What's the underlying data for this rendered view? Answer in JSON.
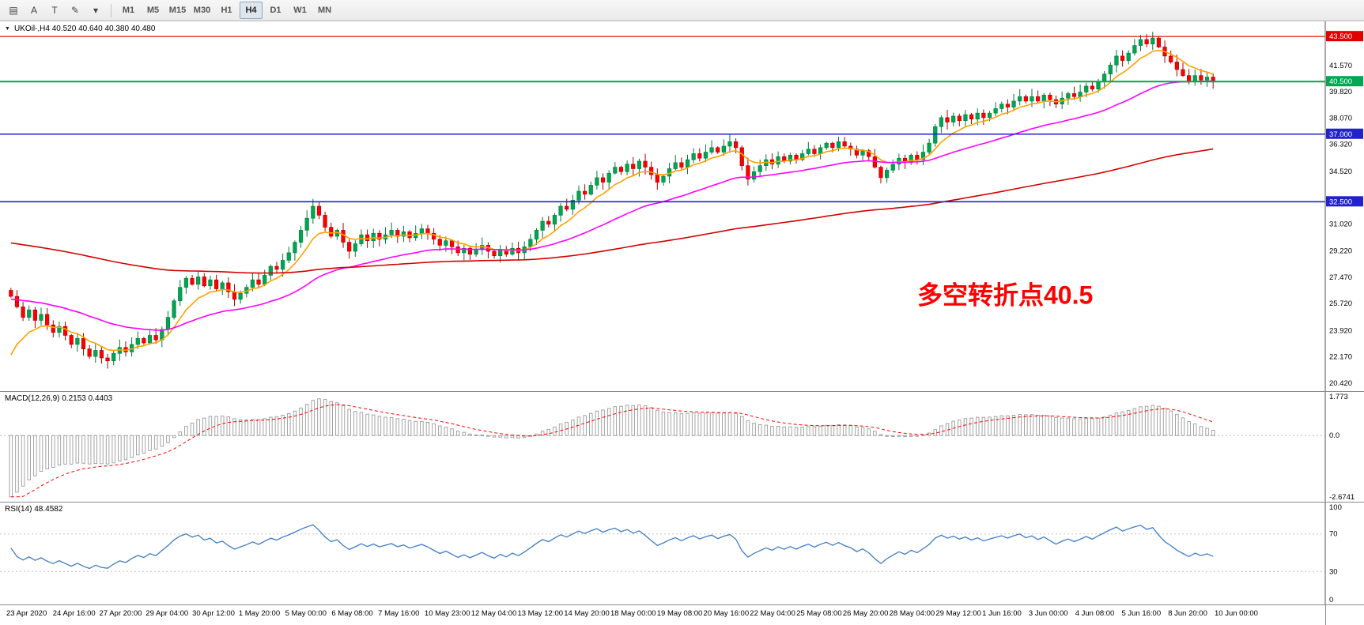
{
  "ui": {
    "toolbar": {
      "tools": [
        {
          "id": "charts-menu-icon",
          "glyph": "▤"
        },
        {
          "id": "arrow-tool-button",
          "glyph": "A"
        },
        {
          "id": "text-tool-button",
          "glyph": "T"
        },
        {
          "id": "draw-tool-icon",
          "glyph": "✎"
        },
        {
          "id": "more-tools-icon",
          "glyph": "▾"
        }
      ],
      "timeframes": [
        "M1",
        "M5",
        "M15",
        "M30",
        "H1",
        "H4",
        "D1",
        "W1",
        "MN"
      ],
      "active_timeframe": "H4"
    },
    "main": {
      "symbol_line": "UKOil-,H4  40.520 40.640 40.380 40.480",
      "annotation": "多空转折点40.5",
      "annotation_color": "#FF0000",
      "price_ticks": [
        "41.570",
        "39.820",
        "38.070",
        "36.320",
        "34.520",
        "31.020",
        "29.220",
        "27.470",
        "25.720",
        "23.920",
        "22.170",
        "20.420"
      ],
      "levels": [
        {
          "price": 43.5,
          "label": "43.500",
          "line_color": "#E00000",
          "badge_bg": "#E00000",
          "width": 1.2
        },
        {
          "price": 40.5,
          "label": "40.500",
          "line_color": "#00A651",
          "badge_bg": "#00A651",
          "width": 2
        },
        {
          "price": 37.0,
          "label": "37.000",
          "line_color": "#2222CC",
          "badge_bg": "#2222CC",
          "width": 1.6
        },
        {
          "price": 32.5,
          "label": "32.500",
          "line_color": "#2222CC",
          "badge_bg": "#2222CC",
          "width": 1.6
        }
      ]
    },
    "macd": {
      "label": "MACD(12,26,9) 0.2153 0.4403",
      "ticks": [
        {
          "label": "1.773",
          "value": 1.773
        },
        {
          "label": "0.0",
          "value": 0
        },
        {
          "label": "-2.6741",
          "value": -2.6741
        }
      ]
    },
    "rsi": {
      "label": "RSI(14) 48.4582",
      "ticks": [
        {
          "label": "100",
          "value": 100
        },
        {
          "label": "70",
          "value": 70
        },
        {
          "label": "30",
          "value": 30
        },
        {
          "label": "0",
          "value": 0
        }
      ],
      "levels": [
        70,
        30
      ]
    }
  },
  "colors": {
    "up": "#00A651",
    "up_stroke": "#007A3C",
    "down": "#FF0000",
    "down_stroke": "#A80000",
    "ma_fast": "#FFA200",
    "ma_mid": "#FF00FF",
    "ma_slow": "#D40000",
    "macd_hist": "#9A9A9A",
    "macd_signal": "#FF0000",
    "rsi_line": "#3E7CC4",
    "axis_line": "#555555",
    "grid_dash": "#BBBBBB"
  },
  "chart_data": {
    "type": "candlestick",
    "symbol": "UKOil-",
    "timeframe": "H4",
    "title": "UKOil-,H4 40.520 40.640 40.380 40.480",
    "price_range": {
      "max": 44.3,
      "min": 20.1
    },
    "x_labels": [
      "23 Apr 2020",
      "24 Apr 16:00",
      "27 Apr 20:00",
      "29 Apr 04:00",
      "30 Apr 12:00",
      "1 May 20:00",
      "5 May 00:00",
      "6 May 08:00",
      "7 May 16:00",
      "10 May 23:00",
      "12 May 04:00",
      "13 May 12:00",
      "14 May 20:00",
      "18 May 00:00",
      "19 May 08:00",
      "20 May 16:00",
      "22 May 04:00",
      "25 May 08:00",
      "26 May 20:00",
      "28 May 04:00",
      "29 May 12:00",
      "1 Jun 16:00",
      "3 Jun 00:00",
      "4 Jun 08:00",
      "5 Jun 16:00",
      "8 Jun 20:00",
      "10 Jun 00:00"
    ],
    "first_open": 26.6,
    "closes": [
      26.2,
      25.5,
      24.8,
      25.3,
      24.6,
      25.0,
      24.3,
      23.8,
      24.2,
      23.6,
      23.0,
      23.4,
      22.7,
      22.2,
      22.6,
      22.1,
      21.9,
      22.4,
      22.8,
      22.5,
      23.0,
      23.4,
      23.1,
      23.6,
      23.3,
      24.0,
      24.8,
      25.9,
      26.8,
      27.4,
      27.0,
      27.5,
      26.9,
      27.3,
      26.7,
      27.1,
      26.5,
      26.0,
      26.4,
      26.8,
      27.3,
      27.0,
      27.6,
      28.2,
      28.0,
      28.6,
      29.1,
      29.8,
      30.6,
      31.4,
      32.2,
      31.6,
      30.8,
      30.2,
      30.6,
      29.8,
      29.2,
      29.7,
      30.3,
      29.9,
      30.4,
      30.0,
      30.3,
      30.6,
      30.2,
      30.5,
      30.1,
      30.4,
      30.7,
      30.4,
      30.0,
      29.6,
      29.9,
      29.5,
      29.1,
      29.4,
      29.0,
      29.3,
      29.6,
      29.2,
      28.9,
      29.3,
      29.0,
      29.4,
      29.1,
      29.5,
      30.0,
      30.6,
      31.2,
      31.0,
      31.6,
      32.2,
      32.0,
      32.6,
      33.2,
      33.0,
      33.6,
      34.1,
      33.8,
      34.4,
      34.8,
      34.5,
      35.0,
      34.7,
      35.2,
      34.8,
      34.3,
      33.8,
      34.2,
      34.7,
      35.1,
      34.8,
      35.3,
      35.7,
      35.4,
      35.8,
      36.1,
      35.8,
      36.2,
      36.5,
      36.1,
      34.9,
      34.0,
      34.5,
      34.9,
      35.3,
      35.0,
      35.5,
      35.2,
      35.6,
      35.3,
      35.7,
      36.0,
      35.7,
      36.1,
      36.4,
      36.1,
      36.5,
      36.2,
      36.0,
      35.6,
      35.9,
      35.5,
      34.8,
      34.1,
      34.6,
      35.0,
      35.4,
      35.1,
      35.6,
      35.3,
      35.8,
      36.4,
      37.5,
      38.1,
      37.8,
      38.2,
      37.9,
      38.3,
      38.0,
      38.4,
      38.1,
      38.4,
      38.7,
      39.0,
      38.8,
      39.2,
      39.5,
      39.2,
      39.5,
      39.2,
      39.6,
      39.3,
      39.0,
      39.4,
      39.7,
      39.5,
      39.8,
      40.2,
      40.0,
      40.5,
      41.0,
      41.6,
      42.2,
      41.9,
      42.4,
      42.9,
      43.3,
      43.0,
      43.4,
      42.8,
      42.2,
      41.8,
      41.3,
      40.9,
      40.5,
      40.9,
      40.6,
      40.8,
      40.48
    ],
    "moving_averages": [
      {
        "name": "ma-fast-orange",
        "alpha": 0.22,
        "seed": 21.2
      },
      {
        "name": "ma-mid-magenta",
        "alpha": 0.055,
        "seed": 26.0
      },
      {
        "name": "ma-slow-red",
        "alpha": 0.013,
        "seed": 29.8
      }
    ],
    "macd": {
      "fast": 12,
      "slow": 26,
      "signal": 9,
      "seed_fast": 23.0,
      "seed_slow": 26.3,
      "range": {
        "max": 1.773,
        "min": -2.6741
      },
      "current_macd": 0.2153,
      "current_signal": 0.4403
    },
    "rsi": {
      "period": 14,
      "current": 48.4582,
      "range": {
        "max": 100,
        "min": 0
      }
    }
  }
}
